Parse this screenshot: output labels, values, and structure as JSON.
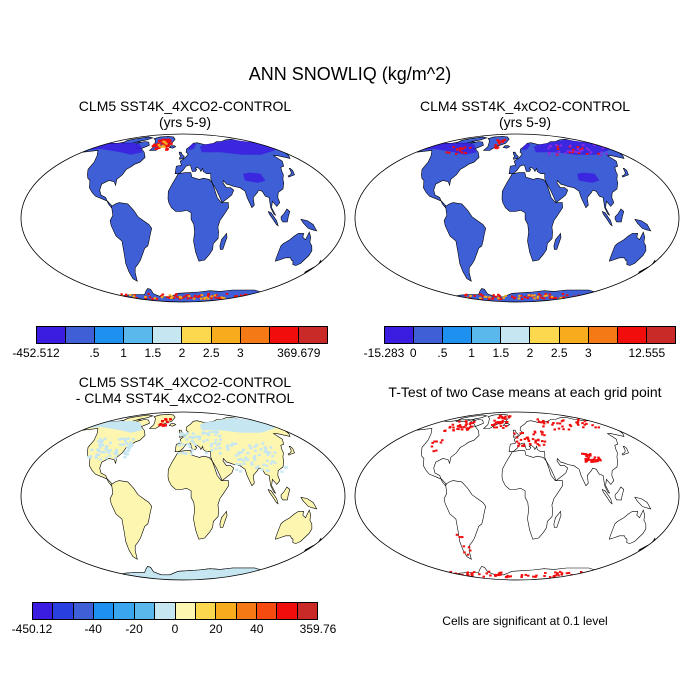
{
  "title": "ANN SNOWLIQ (kg/m^2)",
  "panels": {
    "p1": {
      "line1": "CLM5 SST4K_4XCO2-CONTROL",
      "line2": "(yrs 5-9)"
    },
    "p2": {
      "line1": "CLM4 SST4K_4xCO2-CONTROL",
      "line2": "(yrs 5-9)"
    },
    "p3": {
      "line1": "CLM5 SST4K_4XCO2-CONTROL",
      "line2": "- CLM4 SST4K_4xCO2-CONTROL"
    },
    "p4": {
      "line1": "T-Test of two Case means at each grid point",
      "note": "Cells are significant at 0.1 level"
    }
  },
  "colorbars": {
    "cb1": {
      "colors": [
        "#3a1de0",
        "#3f5fd6",
        "#1e90f0",
        "#5ab8ec",
        "#c6e6f2",
        "#fbd84e",
        "#f6ac1c",
        "#f57a16",
        "#f20d0d",
        "#c92a28"
      ],
      "labels": [
        "-452.512",
        ".5",
        "1",
        "1.5",
        "2",
        "2.5",
        "3",
        "369.679"
      ]
    },
    "cb2": {
      "colors": [
        "#3a1de0",
        "#3f5fd6",
        "#1e90f0",
        "#5ab8ec",
        "#c6e6f2",
        "#fbd84e",
        "#f6ac1c",
        "#f57a16",
        "#f20d0d",
        "#c92a28"
      ],
      "labels": [
        "-15.283",
        "0",
        ".5",
        "1",
        "1.5",
        "2",
        "2.5",
        "3",
        "12.555"
      ]
    },
    "cb3": {
      "colors": [
        "#3a1de0",
        "#2a3fe0",
        "#3f5fd6",
        "#1e90f0",
        "#3aa6f0",
        "#5ab8ec",
        "#c6e6f2",
        "#fdf6b0",
        "#fbd84e",
        "#f6ac1c",
        "#f57a16",
        "#f54a10",
        "#f20d0d",
        "#c92a28"
      ],
      "labels": [
        "-450.12",
        "-40",
        "-20",
        "0",
        "20",
        "40",
        "359.76"
      ]
    }
  },
  "map_colors": {
    "ocean": "#ffffff",
    "land_p1": "#3f5fd6",
    "land_p2": "#3f5fd6",
    "snow_p1": "#3a1de0",
    "land_p3": "#fdf6b0",
    "snow_p3": "#c6e6f2",
    "sig": "#f20d0d",
    "hot": "#f20d0d",
    "warm": "#f6ac1c"
  }
}
